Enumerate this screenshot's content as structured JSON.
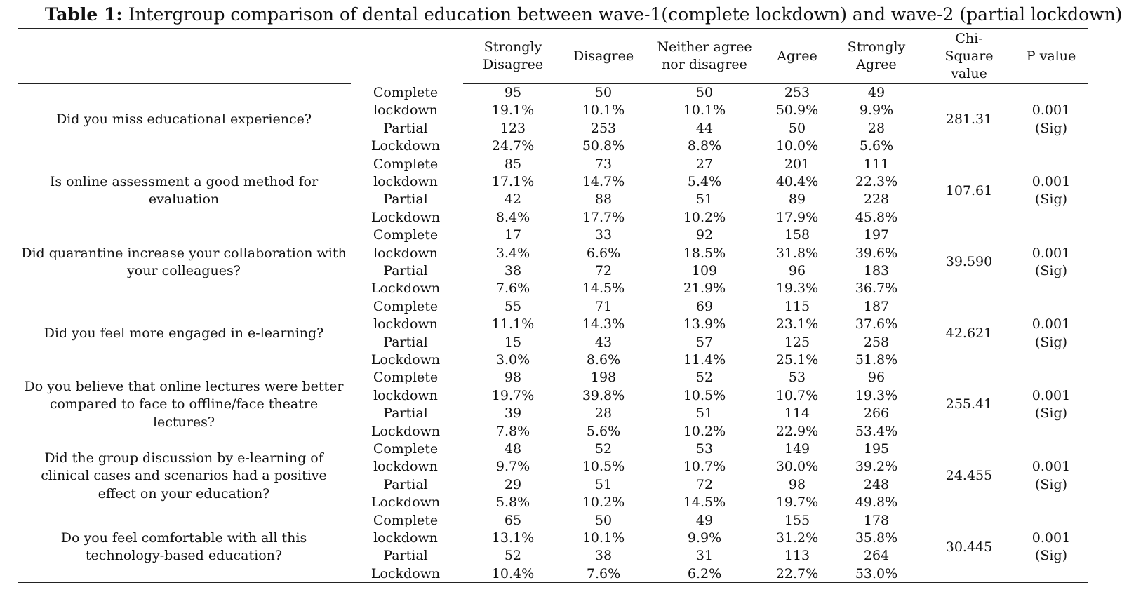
{
  "caption": {
    "label": "Table 1:",
    "text": " Intergroup comparison of dental education between wave-1(complete lockdown) and wave-2 (partial lockdown)"
  },
  "headers": [
    "Strongly\nDisagree",
    "Disagree",
    "Neither agree\nnor disagree",
    "Agree",
    "Strongly\nAgree",
    "Chi-\nSquare\nvalue",
    "P value"
  ],
  "rows": [
    {
      "question": "Did you miss educational experience?",
      "group_lines": [
        "Complete",
        "lockdown",
        "Partial",
        "Lockdown"
      ],
      "col_lines": [
        [
          "95",
          "19.1%",
          "123",
          "24.7%"
        ],
        [
          "50",
          "10.1%",
          "253",
          "50.8%"
        ],
        [
          "50",
          "10.1%",
          "44",
          "8.8%"
        ],
        [
          "253",
          "50.9%",
          "50",
          "10.0%"
        ],
        [
          "49",
          "9.9%",
          "28",
          "5.6%"
        ]
      ],
      "chi": "281.31",
      "p_lines": [
        "0.001",
        "(Sig)"
      ]
    },
    {
      "question": "Is online assessment a good method for evaluation",
      "group_lines": [
        "Complete",
        "lockdown",
        "Partial",
        "Lockdown"
      ],
      "col_lines": [
        [
          "85",
          "17.1%",
          "42",
          "8.4%"
        ],
        [
          "73",
          "14.7%",
          "88",
          "17.7%"
        ],
        [
          "27",
          "5.4%",
          "51",
          "10.2%"
        ],
        [
          "201",
          "40.4%",
          "89",
          "17.9%"
        ],
        [
          "111",
          "22.3%",
          "228",
          "45.8%"
        ]
      ],
      "chi": "107.61",
      "p_lines": [
        "0.001",
        "(Sig)"
      ]
    },
    {
      "question": "Did quarantine increase your collaboration with your colleagues?",
      "group_lines": [
        "Complete",
        "lockdown",
        "Partial",
        "Lockdown"
      ],
      "col_lines": [
        [
          "17",
          "3.4%",
          "38",
          "7.6%"
        ],
        [
          "33",
          "6.6%",
          "72",
          "14.5%"
        ],
        [
          "92",
          "18.5%",
          "109",
          "21.9%"
        ],
        [
          "158",
          "31.8%",
          "96",
          "19.3%"
        ],
        [
          "197",
          "39.6%",
          "183",
          "36.7%"
        ]
      ],
      "chi": "39.590",
      "p_lines": [
        "0.001",
        "(Sig)"
      ]
    },
    {
      "question": "Did you feel more engaged in e-learning?",
      "group_lines": [
        "Complete",
        "lockdown",
        "Partial",
        "Lockdown"
      ],
      "col_lines": [
        [
          "55",
          "11.1%",
          "15",
          "3.0%"
        ],
        [
          "71",
          "14.3%",
          "43",
          "8.6%"
        ],
        [
          "69",
          "13.9%",
          "57",
          "11.4%"
        ],
        [
          "115",
          "23.1%",
          "125",
          "25.1%"
        ],
        [
          "187",
          "37.6%",
          "258",
          "51.8%"
        ]
      ],
      "chi": "42.621",
      "p_lines": [
        "0.001",
        "(Sig)"
      ]
    },
    {
      "question": "Do you believe that online lectures were better compared to face to offline/face theatre lectures?",
      "group_lines": [
        "Complete",
        "lockdown",
        "Partial",
        "Lockdown"
      ],
      "col_lines": [
        [
          "98",
          "19.7%",
          "39",
          "7.8%"
        ],
        [
          "198",
          "39.8%",
          "28",
          "5.6%"
        ],
        [
          "52",
          "10.5%",
          "51",
          "10.2%"
        ],
        [
          "53",
          "10.7%",
          "114",
          "22.9%"
        ],
        [
          "96",
          "19.3%",
          "266",
          "53.4%"
        ]
      ],
      "chi": "255.41",
      "p_lines": [
        "0.001",
        "(Sig)"
      ]
    },
    {
      "question": "Did the group discussion by e-learning of clinical cases and scenarios had a positive effect on your education?",
      "group_lines": [
        "Complete",
        "lockdown",
        "Partial",
        "Lockdown"
      ],
      "col_lines": [
        [
          "48",
          "9.7%",
          "29",
          "5.8%"
        ],
        [
          "52",
          "10.5%",
          "51",
          "10.2%"
        ],
        [
          "53",
          "10.7%",
          "72",
          "14.5%"
        ],
        [
          "149",
          "30.0%",
          "98",
          "19.7%"
        ],
        [
          "195",
          "39.2%",
          "248",
          "49.8%"
        ]
      ],
      "chi": "24.455",
      "p_lines": [
        "0.001",
        "(Sig)"
      ]
    },
    {
      "question": "Do you feel comfortable with all this technology-based education?",
      "group_lines": [
        "Complete",
        "lockdown",
        "Partial",
        "Lockdown"
      ],
      "col_lines": [
        [
          "65",
          "13.1%",
          "52",
          "10.4%"
        ],
        [
          "50",
          "10.1%",
          "38",
          "7.6%"
        ],
        [
          "49",
          "9.9%",
          "31",
          "6.2%"
        ],
        [
          "155",
          "31.2%",
          "113",
          "22.7%"
        ],
        [
          "178",
          "35.8%",
          "264",
          "53.0%"
        ]
      ],
      "chi": "30.445",
      "p_lines": [
        "0.001",
        "(Sig)"
      ]
    }
  ]
}
